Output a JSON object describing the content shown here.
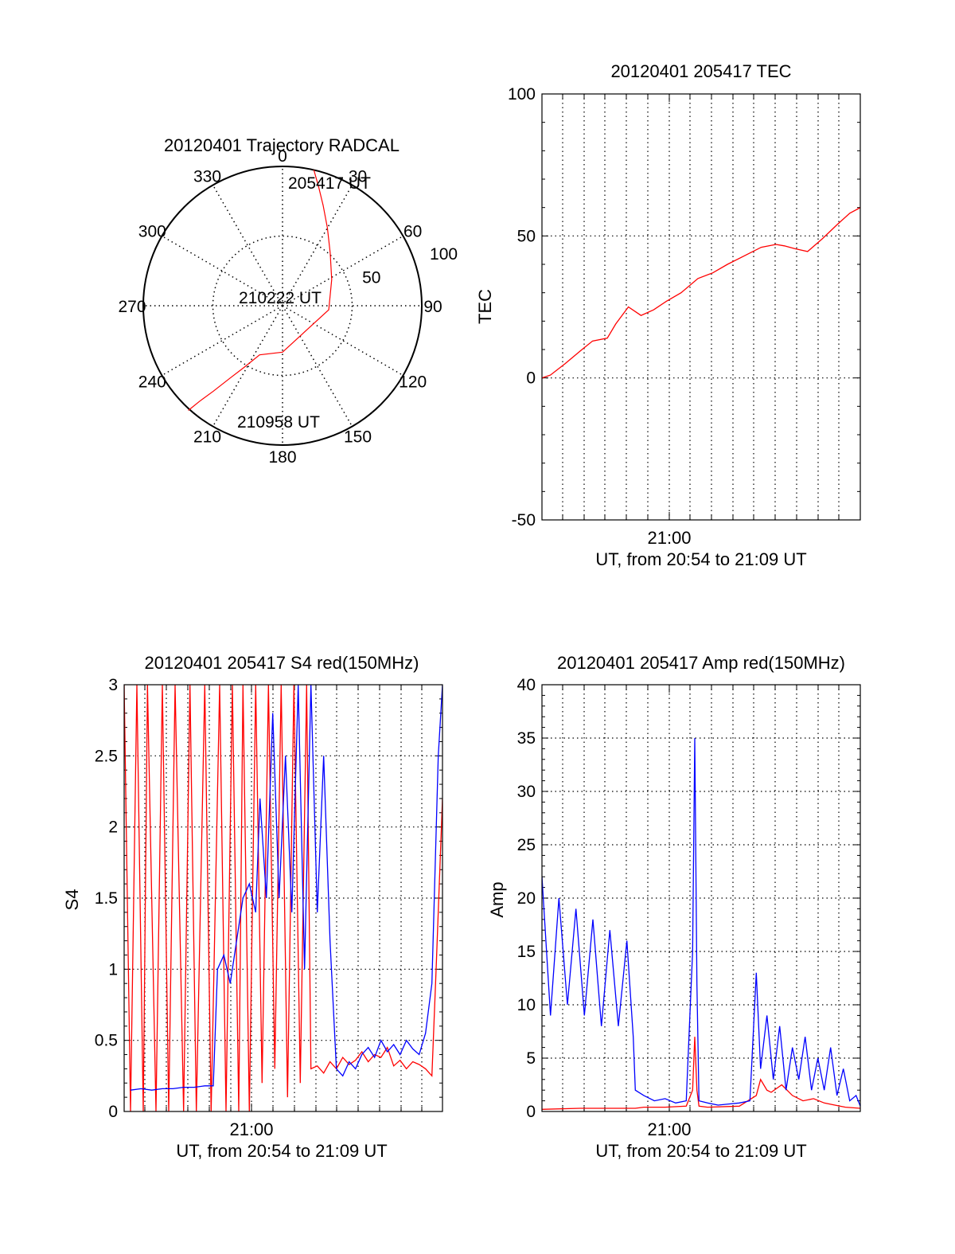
{
  "colors": {
    "red": "#ff0000",
    "blue": "#0000ff",
    "grid": "#000000",
    "background": "#ffffff"
  },
  "chart_data": [
    {
      "id": "polar",
      "type": "polar-trajectory",
      "title": "20120401 Trajectory RADCAL",
      "azimuth_labels": [
        "0",
        "30",
        "60",
        "90",
        "120",
        "150",
        "180",
        "210",
        "240",
        "270",
        "300",
        "330"
      ],
      "radial_ticks": [
        "50",
        "100"
      ],
      "radial_range": [
        0,
        100
      ],
      "grid": "dotted",
      "annotations": {
        "start": "205417 UT",
        "middle": "210222 UT",
        "end": "210958 UT"
      },
      "trajectory": {
        "color": "red",
        "azimuth_deg": [
          13,
          17,
          22,
          30,
          42,
          62,
          95,
          180,
          205,
          212,
          216,
          219,
          221,
          222
        ],
        "zenith_deg": [
          90,
          80,
          70,
          58,
          46,
          36,
          30,
          30,
          35,
          47,
          58,
          71,
          82,
          91
        ]
      }
    },
    {
      "id": "tec",
      "type": "line",
      "title": "20120401 205417 TEC",
      "ylabel": "TEC",
      "xlabel": "UT, from 20:54 to 21:09 UT",
      "x_tick_label": "21:00",
      "y_ticks": [
        "-50",
        "0",
        "50",
        "100"
      ],
      "ylim": [
        -50,
        100
      ],
      "x_range_min": [
        20.9,
        36.0
      ],
      "grid": "dotted",
      "series": [
        {
          "color": "red",
          "x_min": [
            20.9,
            21.3,
            22.0,
            22.8,
            23.3,
            24.0,
            24.4,
            25.0,
            25.6,
            26.2,
            26.8,
            27.5,
            28.3,
            29.0,
            29.7,
            30.5,
            31.3,
            32.0,
            32.4,
            32.9,
            33.5,
            34.2,
            34.9,
            35.5,
            36.0
          ],
          "values": [
            0,
            1,
            5,
            10,
            13,
            14,
            19,
            25,
            22,
            24,
            27,
            30,
            35,
            37,
            40,
            43,
            46,
            47,
            46.5,
            45.5,
            44.5,
            49,
            54,
            58,
            60
          ]
        }
      ]
    },
    {
      "id": "s4",
      "type": "line",
      "title": "20120401 205417 S4 red(150MHz)",
      "ylabel": "S4",
      "xlabel": "UT, from 20:54 to 21:09 UT",
      "x_tick_label": "21:00",
      "y_ticks": [
        "0",
        "0.5",
        "1",
        "1.5",
        "2",
        "2.5",
        "3"
      ],
      "ylim": [
        0,
        3
      ],
      "x_range_min": [
        54.2,
        69.2
      ],
      "grid": "dotted",
      "series": [
        {
          "color": "red",
          "x_min": [
            54.2,
            54.5,
            54.8,
            55.1,
            55.3,
            55.7,
            56.0,
            56.3,
            56.6,
            57.0,
            57.3,
            57.6,
            58.0,
            58.3,
            58.7,
            59.0,
            59.3,
            59.6,
            59.8,
            60.1,
            60.4,
            60.7,
            61.0,
            61.3,
            61.6,
            61.9,
            62.2,
            62.5,
            62.8,
            63.0,
            63.3,
            63.6,
            63.9,
            64.2,
            64.5,
            64.8,
            65.1,
            65.4,
            65.7,
            66.0,
            66.3,
            66.6,
            66.9,
            67.2,
            67.5,
            67.8,
            68.1,
            68.4,
            68.7,
            68.9,
            69.2
          ],
          "values": [
            3,
            0,
            3,
            0,
            3,
            0,
            3,
            0,
            3,
            0,
            3,
            0,
            3,
            0,
            3,
            0,
            3,
            0,
            3,
            0,
            3,
            0.2,
            3,
            0.3,
            3,
            0.1,
            3,
            0.2,
            3,
            0.3,
            0.32,
            0.27,
            0.35,
            0.3,
            0.38,
            0.33,
            0.36,
            0.42,
            0.35,
            0.4,
            0.38,
            0.45,
            0.32,
            0.36,
            0.3,
            0.35,
            0.33,
            0.3,
            0.25,
            1.0,
            2.2
          ]
        },
        {
          "color": "blue",
          "x_min": [
            54.5,
            55.0,
            55.5,
            56.0,
            56.5,
            57.0,
            57.5,
            58.0,
            58.4,
            58.6,
            58.9,
            59.2,
            59.5,
            59.8,
            60.1,
            60.4,
            60.6,
            60.9,
            61.2,
            61.5,
            61.8,
            62.1,
            62.4,
            62.7,
            63.0,
            63.3,
            63.6,
            63.9,
            64.2,
            64.5,
            64.8,
            65.1,
            65.4,
            65.7,
            66.0,
            66.3,
            66.6,
            66.9,
            67.2,
            67.5,
            67.8,
            68.1,
            68.4,
            68.7,
            69.0,
            69.2
          ],
          "values": [
            0.15,
            0.16,
            0.15,
            0.16,
            0.16,
            0.17,
            0.17,
            0.18,
            0.18,
            1.0,
            1.1,
            0.9,
            1.2,
            1.5,
            1.6,
            1.4,
            2.2,
            1.5,
            2.8,
            1.5,
            2.5,
            1.4,
            3,
            1.0,
            3,
            1.4,
            2.5,
            1.2,
            0.3,
            0.25,
            0.35,
            0.3,
            0.4,
            0.45,
            0.38,
            0.5,
            0.42,
            0.47,
            0.4,
            0.5,
            0.44,
            0.4,
            0.55,
            0.9,
            2.5,
            3
          ]
        }
      ]
    },
    {
      "id": "amp",
      "type": "line",
      "title": "20120401 205417 Amp red(150MHz)",
      "ylabel": "Amp",
      "xlabel": "UT, from 20:54 to 21:09 UT",
      "x_tick_label": "21:00",
      "y_ticks": [
        "0",
        "5",
        "10",
        "15",
        "20",
        "25",
        "30",
        "35",
        "40"
      ],
      "ylim": [
        0,
        40
      ],
      "x_range_min": [
        54.2,
        69.2
      ],
      "grid": "dotted",
      "series": [
        {
          "color": "red",
          "x_min": [
            54.2,
            56.0,
            58.0,
            58.6,
            59.0,
            60.0,
            61.0,
            61.3,
            61.4,
            61.5,
            61.6,
            62.0,
            63.5,
            64.3,
            64.5,
            64.8,
            65.0,
            65.5,
            66.0,
            66.5,
            67.0,
            67.5,
            68.0,
            68.5,
            69.2
          ],
          "values": [
            0.2,
            0.3,
            0.3,
            0.3,
            0.4,
            0.4,
            0.5,
            2,
            7,
            2,
            0.5,
            0.4,
            0.5,
            1.5,
            3.0,
            2.0,
            1.8,
            2.5,
            1.5,
            1.0,
            1.2,
            0.8,
            0.6,
            0.4,
            0.3
          ]
        },
        {
          "color": "blue",
          "x_min": [
            54.2,
            54.6,
            55.0,
            55.4,
            55.8,
            56.2,
            56.6,
            57.0,
            57.4,
            57.8,
            58.2,
            58.5,
            58.6,
            59.0,
            59.5,
            60.0,
            60.5,
            61.0,
            61.3,
            61.4,
            61.5,
            61.6,
            62.0,
            62.5,
            63.0,
            63.5,
            64.0,
            64.3,
            64.5,
            64.8,
            65.1,
            65.4,
            65.7,
            66.0,
            66.3,
            66.6,
            66.9,
            67.2,
            67.5,
            67.8,
            68.1,
            68.4,
            68.7,
            69.0,
            69.2
          ],
          "values": [
            22,
            9,
            20,
            10,
            19,
            9,
            18,
            8,
            17,
            8,
            16,
            7,
            2,
            1.5,
            1.0,
            1.2,
            0.8,
            1.0,
            15,
            35,
            12,
            1.0,
            0.8,
            0.6,
            0.7,
            0.8,
            1.0,
            13,
            4,
            9,
            3,
            8,
            2,
            6,
            3,
            7,
            2,
            5,
            2,
            6,
            1.5,
            4,
            1.0,
            1.5,
            0.5
          ]
        }
      ]
    }
  ]
}
